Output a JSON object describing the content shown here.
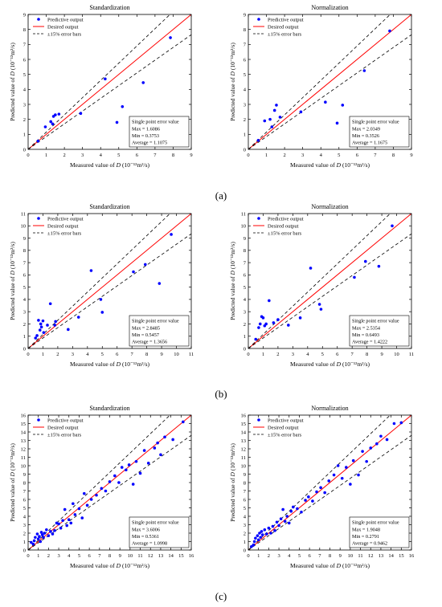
{
  "figure": {
    "panel_labels": [
      "(a)",
      "(b)",
      "(c)"
    ]
  },
  "chart_data": [
    {
      "type": "scatter",
      "row": 0,
      "col": 0,
      "title": "Standardization",
      "xlabel": "Measured value of D (10⁻¹²m²/s)",
      "ylabel": "Predicted value of D (10⁻¹²m²/s)",
      "xlim": [
        0,
        9
      ],
      "ylim": [
        0,
        9
      ],
      "xticks": [
        0,
        1,
        2,
        3,
        4,
        5,
        6,
        7,
        8,
        9
      ],
      "yticks": [
        0,
        1,
        2,
        3,
        4,
        5,
        6,
        7,
        8,
        9
      ],
      "legend": [
        "Predictive output",
        "Desired output",
        "±15% error bars"
      ],
      "legend_position": "top-left",
      "error_box": {
        "title": "Single point error value",
        "lines": [
          "Max = 1.6086",
          "Min = 0.3753",
          "Average = 1.1075"
        ]
      },
      "points": [
        [
          0.55,
          0.55
        ],
        [
          0.95,
          1.5
        ],
        [
          1.25,
          1.85
        ],
        [
          1.35,
          1.7
        ],
        [
          1.4,
          2.2
        ],
        [
          1.5,
          2.3
        ],
        [
          1.7,
          2.35
        ],
        [
          2.9,
          2.4
        ],
        [
          4.25,
          4.7
        ],
        [
          4.9,
          1.8
        ],
        [
          5.2,
          2.85
        ],
        [
          6.35,
          4.45
        ],
        [
          7.85,
          7.45
        ]
      ],
      "colors": {
        "points": "#0000ff",
        "ideal": "#ff0000",
        "bounds": "#000000"
      }
    },
    {
      "type": "scatter",
      "row": 0,
      "col": 1,
      "title": "Normalization",
      "xlabel": "Measured value of D (10⁻¹²m²/s)",
      "ylabel": "Predicted value of D (10⁻¹²m²/s)",
      "xlim": [
        0,
        9
      ],
      "ylim": [
        0,
        9
      ],
      "xticks": [
        0,
        1,
        2,
        3,
        4,
        5,
        6,
        7,
        8,
        9
      ],
      "yticks": [
        0,
        1,
        2,
        3,
        4,
        5,
        6,
        7,
        8,
        9
      ],
      "legend": [
        "Predictive output",
        "Desired output",
        "±15% error bars"
      ],
      "legend_position": "top-left",
      "error_box": {
        "title": "Single point error value",
        "lines": [
          "Max = 2.0349",
          "Min = 0.3526",
          "Average = 1.1675"
        ]
      },
      "points": [
        [
          0.55,
          0.6
        ],
        [
          0.9,
          1.9
        ],
        [
          1.2,
          2.0
        ],
        [
          1.3,
          1.5
        ],
        [
          1.45,
          2.6
        ],
        [
          1.55,
          2.95
        ],
        [
          1.75,
          2.15
        ],
        [
          2.9,
          2.5
        ],
        [
          4.25,
          3.15
        ],
        [
          4.9,
          1.75
        ],
        [
          5.2,
          2.95
        ],
        [
          6.4,
          5.25
        ],
        [
          7.8,
          7.9
        ]
      ],
      "colors": {
        "points": "#0000ff",
        "ideal": "#ff0000",
        "bounds": "#000000"
      }
    },
    {
      "type": "scatter",
      "row": 1,
      "col": 0,
      "title": "Standardization",
      "xlabel": "Measured value of D (10⁻¹²m²/s)",
      "ylabel": "Predicted value of D (10⁻¹²m²/s)",
      "xlim": [
        0,
        11
      ],
      "ylim": [
        0,
        11
      ],
      "xticks": [
        0,
        1,
        2,
        3,
        4,
        5,
        6,
        7,
        8,
        9,
        10,
        11
      ],
      "yticks": [
        0,
        1,
        2,
        3,
        4,
        5,
        6,
        7,
        8,
        9,
        10,
        11
      ],
      "legend": [
        "Predictive output",
        "Desired output",
        "±15% error bars"
      ],
      "legend_position": "top-left",
      "error_box": {
        "title": "Single point error value",
        "lines": [
          "Max = 2.8485",
          "Min = 0.5457",
          "Average = 1.3656"
        ]
      },
      "points": [
        [
          0.5,
          0.85
        ],
        [
          0.6,
          1.05
        ],
        [
          0.7,
          2.3
        ],
        [
          0.8,
          1.5
        ],
        [
          0.85,
          2.0
        ],
        [
          0.9,
          1.75
        ],
        [
          1.0,
          2.25
        ],
        [
          1.05,
          1.3
        ],
        [
          1.3,
          1.9
        ],
        [
          1.5,
          3.65
        ],
        [
          1.8,
          1.9
        ],
        [
          1.85,
          2.2
        ],
        [
          2.7,
          1.55
        ],
        [
          3.4,
          2.55
        ],
        [
          4.25,
          6.35
        ],
        [
          4.9,
          4.0
        ],
        [
          5.0,
          2.95
        ],
        [
          7.1,
          6.25
        ],
        [
          7.9,
          6.85
        ],
        [
          8.85,
          5.3
        ],
        [
          9.65,
          9.3
        ]
      ],
      "colors": {
        "points": "#0000ff",
        "ideal": "#ff0000",
        "bounds": "#000000"
      }
    },
    {
      "type": "scatter",
      "row": 1,
      "col": 1,
      "title": "Normalization",
      "xlabel": "Measured value of D (10⁻¹²m²/s)",
      "ylabel": "Predicted value of D (10⁻¹²m²/s)",
      "xlim": [
        0,
        11
      ],
      "ylim": [
        0,
        11
      ],
      "xticks": [
        0,
        1,
        2,
        3,
        4,
        5,
        6,
        7,
        8,
        9,
        10,
        11
      ],
      "yticks": [
        0,
        1,
        2,
        3,
        4,
        5,
        6,
        7,
        8,
        9,
        10,
        11
      ],
      "legend": [
        "Predictive output",
        "Desired output",
        "±15% error bars"
      ],
      "legend_position": "top-left",
      "error_box": {
        "title": "Single point error value",
        "lines": [
          "Max = 2.5354",
          "Min = 0.6493",
          "Average = 1.4222"
        ]
      },
      "points": [
        [
          0.5,
          0.75
        ],
        [
          0.7,
          1.7
        ],
        [
          0.8,
          2.0
        ],
        [
          0.9,
          2.6
        ],
        [
          1.0,
          2.5
        ],
        [
          1.1,
          1.85
        ],
        [
          1.2,
          2.0
        ],
        [
          1.4,
          3.9
        ],
        [
          1.7,
          2.1
        ],
        [
          2.0,
          2.35
        ],
        [
          2.7,
          1.9
        ],
        [
          3.5,
          2.5
        ],
        [
          4.2,
          6.55
        ],
        [
          4.8,
          3.6
        ],
        [
          4.9,
          3.2
        ],
        [
          7.15,
          5.8
        ],
        [
          7.9,
          7.1
        ],
        [
          8.8,
          6.7
        ],
        [
          9.7,
          10.0
        ]
      ],
      "colors": {
        "points": "#0000ff",
        "ideal": "#ff0000",
        "bounds": "#000000"
      }
    },
    {
      "type": "scatter",
      "row": 2,
      "col": 0,
      "title": "Standardization",
      "xlabel": "Measured value of D (10⁻¹²m²/s)",
      "ylabel": "Predicted value of D (10⁻¹²m²/s)",
      "xlim": [
        0,
        16
      ],
      "ylim": [
        0,
        16
      ],
      "xticks": [
        0,
        1,
        2,
        3,
        4,
        5,
        6,
        7,
        8,
        9,
        10,
        11,
        12,
        13,
        14,
        15,
        16
      ],
      "yticks": [
        0,
        1,
        2,
        3,
        4,
        5,
        6,
        7,
        8,
        9,
        10,
        11,
        12,
        13,
        14,
        15,
        16
      ],
      "legend": [
        "Predictive output",
        "Desired output",
        "±15% error bars"
      ],
      "legend_position": "top-left",
      "error_box": {
        "title": "Single point error value",
        "lines": [
          "Max = 3.6006",
          "Min = 0.5361",
          "Average = 1.0998"
        ]
      },
      "points": [
        [
          0.3,
          0.9
        ],
        [
          0.5,
          0.7
        ],
        [
          0.6,
          1.1
        ],
        [
          0.7,
          1.5
        ],
        [
          0.9,
          1.9
        ],
        [
          1.0,
          1.3
        ],
        [
          1.1,
          1.6
        ],
        [
          1.2,
          1.0
        ],
        [
          1.3,
          2.1
        ],
        [
          1.4,
          1.8
        ],
        [
          1.5,
          1.5
        ],
        [
          1.6,
          2.0
        ],
        [
          1.8,
          2.4
        ],
        [
          2.0,
          1.7
        ],
        [
          2.2,
          2.2
        ],
        [
          2.4,
          1.9
        ],
        [
          2.6,
          2.3
        ],
        [
          2.8,
          3.2
        ],
        [
          3.0,
          3.1
        ],
        [
          3.2,
          2.6
        ],
        [
          3.4,
          3.5
        ],
        [
          3.6,
          4.8
        ],
        [
          3.8,
          2.9
        ],
        [
          4.0,
          3.6
        ],
        [
          4.2,
          3.2
        ],
        [
          4.4,
          5.5
        ],
        [
          4.6,
          4.2
        ],
        [
          5.0,
          4.9
        ],
        [
          5.3,
          3.8
        ],
        [
          5.5,
          6.7
        ],
        [
          5.8,
          5.3
        ],
        [
          6.2,
          6.0
        ],
        [
          6.7,
          6.5
        ],
        [
          7.2,
          7.3
        ],
        [
          7.6,
          7.0
        ],
        [
          8.0,
          8.1
        ],
        [
          8.5,
          8.8
        ],
        [
          8.9,
          8.0
        ],
        [
          9.2,
          9.8
        ],
        [
          9.6,
          9.5
        ],
        [
          9.9,
          10.1
        ],
        [
          10.3,
          7.8
        ],
        [
          10.6,
          10.5
        ],
        [
          11.0,
          9.1
        ],
        [
          11.4,
          11.8
        ],
        [
          11.8,
          10.3
        ],
        [
          12.4,
          12.1
        ],
        [
          12.7,
          12.7
        ],
        [
          13.0,
          11.3
        ],
        [
          13.4,
          13.4
        ],
        [
          14.2,
          13.1
        ],
        [
          15.2,
          15.2
        ]
      ],
      "colors": {
        "points": "#0000ff",
        "ideal": "#ff0000",
        "bounds": "#000000"
      }
    },
    {
      "type": "scatter",
      "row": 2,
      "col": 1,
      "title": "Normalization",
      "xlabel": "Measured value of D (10⁻¹²m²/s)",
      "ylabel": "Predicted value of D (10⁻¹²m²/s)",
      "xlim": [
        0,
        16
      ],
      "ylim": [
        0,
        16
      ],
      "xticks": [
        0,
        1,
        2,
        3,
        4,
        5,
        6,
        7,
        8,
        9,
        10,
        11,
        12,
        13,
        14,
        15,
        16
      ],
      "yticks": [
        0,
        1,
        2,
        3,
        4,
        5,
        6,
        7,
        8,
        9,
        10,
        11,
        12,
        13,
        14,
        15,
        16
      ],
      "legend": [
        "Predictive output",
        "Desired output",
        "±15% error bars"
      ],
      "legend_position": "top-left",
      "error_box": {
        "title": "Single point error value",
        "lines": [
          "Max = 1.9048",
          "Min = 0.2791",
          "Average = 0.9462"
        ]
      },
      "points": [
        [
          0.3,
          0.4
        ],
        [
          0.5,
          0.6
        ],
        [
          0.6,
          1.0
        ],
        [
          0.7,
          1.4
        ],
        [
          0.9,
          1.7
        ],
        [
          1.0,
          1.2
        ],
        [
          1.1,
          2.0
        ],
        [
          1.2,
          1.5
        ],
        [
          1.3,
          2.2
        ],
        [
          1.4,
          1.8
        ],
        [
          1.6,
          2.4
        ],
        [
          1.8,
          1.9
        ],
        [
          2.0,
          2.6
        ],
        [
          2.2,
          2.0
        ],
        [
          2.4,
          2.8
        ],
        [
          2.6,
          2.3
        ],
        [
          2.8,
          3.3
        ],
        [
          3.0,
          2.9
        ],
        [
          3.2,
          3.7
        ],
        [
          3.4,
          4.8
        ],
        [
          3.6,
          3.4
        ],
        [
          3.8,
          4.0
        ],
        [
          4.0,
          3.2
        ],
        [
          4.2,
          4.6
        ],
        [
          4.4,
          5.1
        ],
        [
          4.8,
          4.9
        ],
        [
          5.2,
          4.5
        ],
        [
          5.6,
          5.9
        ],
        [
          5.9,
          6.3
        ],
        [
          6.3,
          5.8
        ],
        [
          6.7,
          6.9
        ],
        [
          7.1,
          7.4
        ],
        [
          7.5,
          6.8
        ],
        [
          7.9,
          8.2
        ],
        [
          8.4,
          8.9
        ],
        [
          8.8,
          10.0
        ],
        [
          9.2,
          8.5
        ],
        [
          9.6,
          9.8
        ],
        [
          10.0,
          7.8
        ],
        [
          10.3,
          10.6
        ],
        [
          10.8,
          8.9
        ],
        [
          11.2,
          11.7
        ],
        [
          11.6,
          10.5
        ],
        [
          12.0,
          12.1
        ],
        [
          12.6,
          12.6
        ],
        [
          13.0,
          13.5
        ],
        [
          13.6,
          13.1
        ],
        [
          14.3,
          15.0
        ],
        [
          15.0,
          15.1
        ]
      ],
      "colors": {
        "points": "#0000ff",
        "ideal": "#ff0000",
        "bounds": "#000000"
      }
    }
  ]
}
